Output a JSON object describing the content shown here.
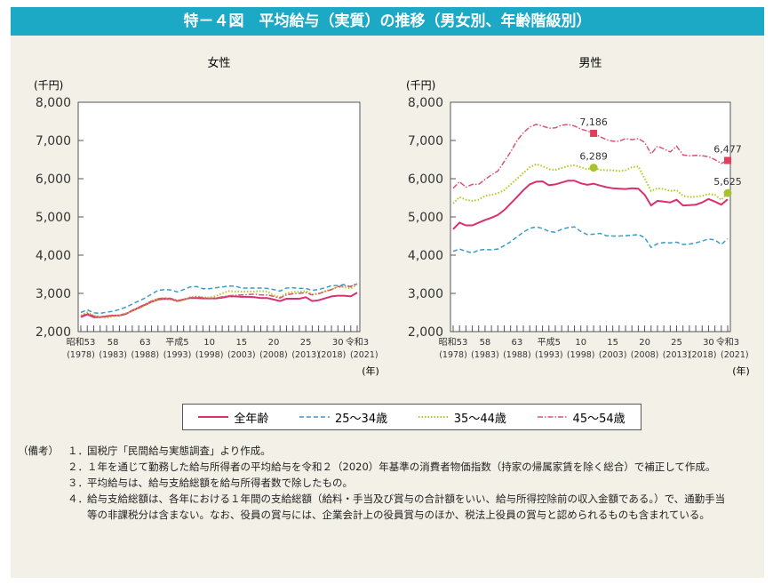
{
  "title": "特－４図　平均給与（実質）の推移（男女別、年齢階級別）",
  "legend": [
    {
      "label": "全年齢",
      "color": "#d9306f",
      "style": "solid"
    },
    {
      "label": "25～34歳",
      "color": "#3b9bc9",
      "style": "dashed"
    },
    {
      "label": "35～44歳",
      "color": "#b3c820",
      "style": "dotted"
    },
    {
      "label": "45～54歳",
      "color": "#d65577",
      "style": "dashdot"
    }
  ],
  "notes": {
    "label": "（備考）",
    "items": [
      {
        "num": "１．",
        "text": "国税庁「民間給与実態調査」より作成。"
      },
      {
        "num": "２．",
        "text": "１年を通じて勤務した給与所得者の平均給与を令和２（2020）年基準の消費者物価指数（持家の帰属家賃を除く総合）で補正して作成。"
      },
      {
        "num": "３．",
        "text": "平均給与は、給与支給総額を給与所得者数で除したもの。"
      },
      {
        "num": "４．",
        "text": "給与支給総額は、各年における１年間の支給総額（給料・手当及び賞与の合計額をいい、給与所得控除前の収入金額である。）で、通勤手当等の非課税分は含まない。なお、役員の賞与には、企業会計上の役員賞与のほか、税法上役員の賞与と認められるものも含まれている。"
      }
    ]
  },
  "chart_data": [
    {
      "type": "line",
      "title": "女性",
      "ylabel": "(千円)",
      "xlabel": "(年)",
      "ylim": [
        2000,
        8000
      ],
      "yticks": [
        "2,000",
        "3,000",
        "4,000",
        "5,000",
        "6,000",
        "7,000",
        "8,000"
      ],
      "x_start": 1978,
      "x_end": 2021,
      "xticks": [
        {
          "year": 1978,
          "era": "昭和53",
          "ad": "(1978)"
        },
        {
          "year": 1983,
          "era": "58",
          "ad": "(1983)"
        },
        {
          "year": 1988,
          "era": "63",
          "ad": "(1988)"
        },
        {
          "year": 1993,
          "era": "平成5",
          "ad": "(1993)"
        },
        {
          "year": 1998,
          "era": "10",
          "ad": "(1998)"
        },
        {
          "year": 2003,
          "era": "15",
          "ad": "(2003)"
        },
        {
          "year": 2008,
          "era": "20",
          "ad": "(2008)"
        },
        {
          "year": 2013,
          "era": "25",
          "ad": "(2013)"
        },
        {
          "year": 2018,
          "era": "30",
          "ad": "(2018)"
        },
        {
          "year": 2021,
          "era": "令和3",
          "ad": "(2021)"
        }
      ],
      "series": [
        {
          "name": "全年齢",
          "values": [
            2380,
            2450,
            2380,
            2380,
            2400,
            2420,
            2420,
            2460,
            2550,
            2620,
            2700,
            2780,
            2840,
            2860,
            2850,
            2800,
            2840,
            2880,
            2880,
            2870,
            2870,
            2870,
            2890,
            2920,
            2920,
            2910,
            2910,
            2900,
            2880,
            2880,
            2840,
            2800,
            2860,
            2860,
            2860,
            2900,
            2800,
            2820,
            2870,
            2920,
            2940,
            2940,
            2920,
            3020
          ]
        },
        {
          "name": "25～34歳",
          "values": [
            2500,
            2570,
            2490,
            2480,
            2510,
            2530,
            2580,
            2640,
            2720,
            2800,
            2880,
            2980,
            3080,
            3100,
            3090,
            3040,
            3100,
            3170,
            3180,
            3120,
            3120,
            3150,
            3170,
            3190,
            3190,
            3140,
            3140,
            3140,
            3140,
            3130,
            3100,
            3060,
            3140,
            3150,
            3130,
            3130,
            3080,
            3100,
            3150,
            3200,
            3210,
            3230,
            3170,
            3250
          ]
        },
        {
          "name": "35～44歳",
          "values": [
            2420,
            2500,
            2420,
            2380,
            2360,
            2400,
            2420,
            2480,
            2540,
            2620,
            2680,
            2780,
            2860,
            2880,
            2860,
            2790,
            2820,
            2900,
            2920,
            2900,
            2890,
            2930,
            3000,
            3060,
            3050,
            3050,
            3050,
            3050,
            3060,
            3050,
            2950,
            2900,
            3000,
            3040,
            3040,
            3060,
            2980,
            3000,
            3060,
            3100,
            3170,
            3160,
            3130,
            3240
          ]
        },
        {
          "name": "45～54歳",
          "values": [
            2400,
            2480,
            2410,
            2390,
            2400,
            2420,
            2430,
            2470,
            2560,
            2640,
            2720,
            2800,
            2860,
            2880,
            2870,
            2820,
            2830,
            2890,
            2910,
            2890,
            2860,
            2880,
            2910,
            2940,
            2950,
            2960,
            2970,
            2980,
            2960,
            2960,
            2920,
            2880,
            2960,
            2990,
            3000,
            3020,
            2960,
            2990,
            3050,
            3100,
            3180,
            3200,
            3180,
            3270
          ]
        }
      ],
      "annotations": []
    },
    {
      "type": "line",
      "title": "男性",
      "ylabel": "(千円)",
      "xlabel": "(年)",
      "ylim": [
        2000,
        8000
      ],
      "yticks": [
        "2,000",
        "3,000",
        "4,000",
        "5,000",
        "6,000",
        "7,000",
        "8,000"
      ],
      "x_start": 1978,
      "x_end": 2021,
      "xticks": [
        {
          "year": 1978,
          "era": "昭和53",
          "ad": "(1978)"
        },
        {
          "year": 1983,
          "era": "58",
          "ad": "(1983)"
        },
        {
          "year": 1988,
          "era": "63",
          "ad": "(1988)"
        },
        {
          "year": 1993,
          "era": "平成5",
          "ad": "(1993)"
        },
        {
          "year": 1998,
          "era": "10",
          "ad": "(1998)"
        },
        {
          "year": 2003,
          "era": "15",
          "ad": "(2003)"
        },
        {
          "year": 2008,
          "era": "20",
          "ad": "(2008)"
        },
        {
          "year": 2013,
          "era": "25",
          "ad": "(2013)"
        },
        {
          "year": 2018,
          "era": "30",
          "ad": "(2018)"
        },
        {
          "year": 2021,
          "era": "令和3",
          "ad": "(2021)"
        }
      ],
      "series": [
        {
          "name": "全年齢",
          "values": [
            4680,
            4850,
            4780,
            4780,
            4850,
            4920,
            4980,
            5050,
            5180,
            5350,
            5520,
            5700,
            5850,
            5920,
            5930,
            5830,
            5850,
            5900,
            5950,
            5950,
            5880,
            5840,
            5870,
            5820,
            5780,
            5750,
            5740,
            5730,
            5750,
            5740,
            5580,
            5300,
            5420,
            5400,
            5380,
            5450,
            5300,
            5310,
            5320,
            5380,
            5470,
            5400,
            5320,
            5460
          ]
        },
        {
          "name": "25～34歳",
          "values": [
            4100,
            4160,
            4100,
            4060,
            4130,
            4150,
            4140,
            4160,
            4250,
            4350,
            4480,
            4600,
            4700,
            4740,
            4700,
            4620,
            4600,
            4680,
            4720,
            4740,
            4620,
            4540,
            4550,
            4570,
            4510,
            4500,
            4500,
            4510,
            4520,
            4540,
            4460,
            4200,
            4300,
            4330,
            4320,
            4340,
            4280,
            4290,
            4320,
            4370,
            4420,
            4400,
            4280,
            4430
          ]
        },
        {
          "name": "35～44歳",
          "values": [
            5350,
            5520,
            5450,
            5420,
            5450,
            5550,
            5580,
            5620,
            5700,
            5850,
            6000,
            6150,
            6300,
            6380,
            6330,
            6250,
            6230,
            6280,
            6330,
            6350,
            6300,
            6250,
            6289,
            6230,
            6220,
            6220,
            6200,
            6220,
            6300,
            6320,
            6000,
            5680,
            5750,
            5730,
            5680,
            5700,
            5550,
            5520,
            5530,
            5550,
            5600,
            5580,
            5450,
            5625
          ]
        },
        {
          "name": "45～54歳",
          "values": [
            5750,
            5920,
            5780,
            5850,
            5850,
            5980,
            6100,
            6200,
            6450,
            6700,
            7000,
            7200,
            7350,
            7420,
            7380,
            7320,
            7330,
            7400,
            7420,
            7380,
            7300,
            7250,
            7186,
            7100,
            7020,
            6980,
            6980,
            7050,
            7020,
            7050,
            6950,
            6650,
            6850,
            6780,
            6700,
            6850,
            6620,
            6600,
            6610,
            6600,
            6580,
            6500,
            6400,
            6477
          ]
        }
      ],
      "annotations": [
        {
          "series": "45～54歳",
          "year": 2000,
          "label": "7,186",
          "marker": "square",
          "color": "#e0405e"
        },
        {
          "series": "35～44歳",
          "year": 2000,
          "label": "6,289",
          "marker": "circle",
          "color": "#a6c22e"
        },
        {
          "series": "45～54歳",
          "year": 2021,
          "label": "6,477",
          "marker": "square",
          "color": "#e0405e"
        },
        {
          "series": "35～44歳",
          "year": 2021,
          "label": "5,625",
          "marker": "circle",
          "color": "#a6c22e"
        }
      ]
    }
  ]
}
